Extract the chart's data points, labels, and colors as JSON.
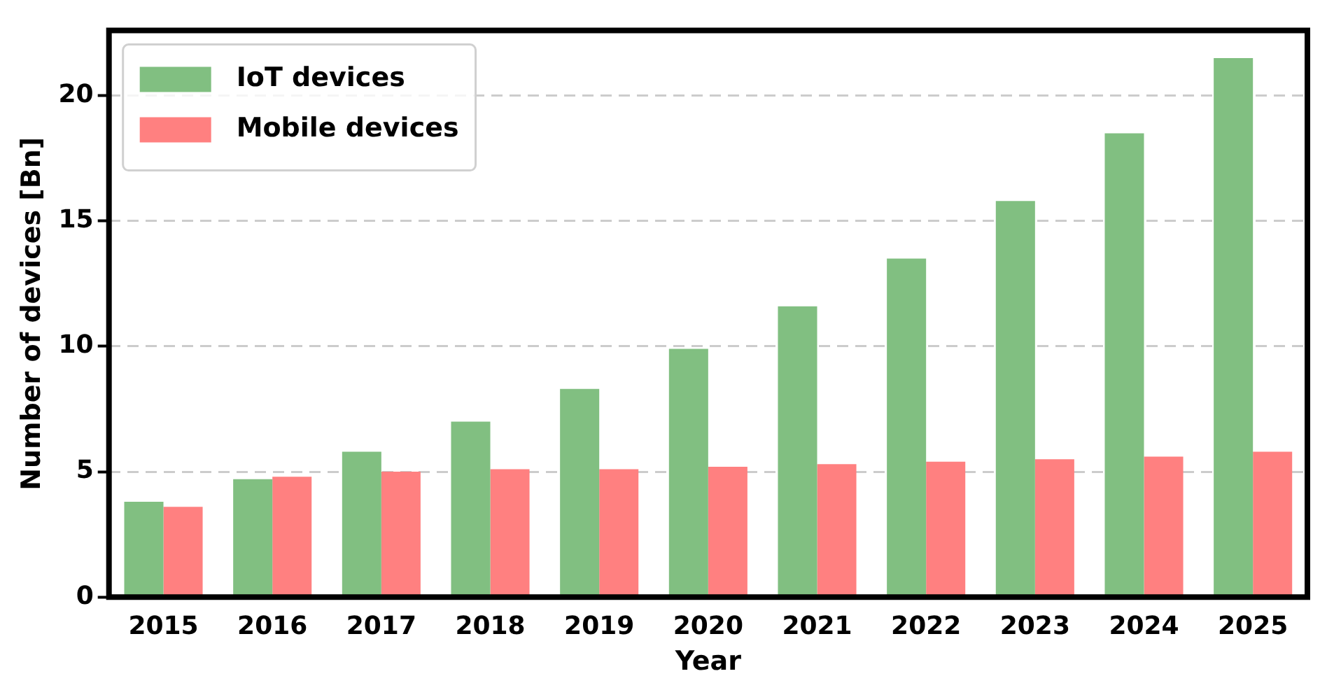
{
  "chart_data": {
    "type": "bar",
    "xlabel": "Year",
    "ylabel": "Number of devices [Bn]",
    "categories": [
      "2015",
      "2016",
      "2017",
      "2018",
      "2019",
      "2020",
      "2021",
      "2022",
      "2023",
      "2024",
      "2025"
    ],
    "series": [
      {
        "name": "IoT devices",
        "color": "#81bf81",
        "values": [
          3.8,
          4.7,
          5.8,
          7.0,
          8.3,
          9.9,
          11.6,
          13.5,
          15.8,
          18.5,
          21.5
        ]
      },
      {
        "name": "Mobile devices",
        "color": "#ff8080",
        "values": [
          3.6,
          4.8,
          5.0,
          5.1,
          5.1,
          5.2,
          5.3,
          5.4,
          5.5,
          5.6,
          5.8
        ]
      }
    ],
    "ylim": [
      0,
      22.6
    ],
    "yticks": [
      0,
      5,
      10,
      15,
      20
    ],
    "grid": "y",
    "legend": "top left"
  }
}
